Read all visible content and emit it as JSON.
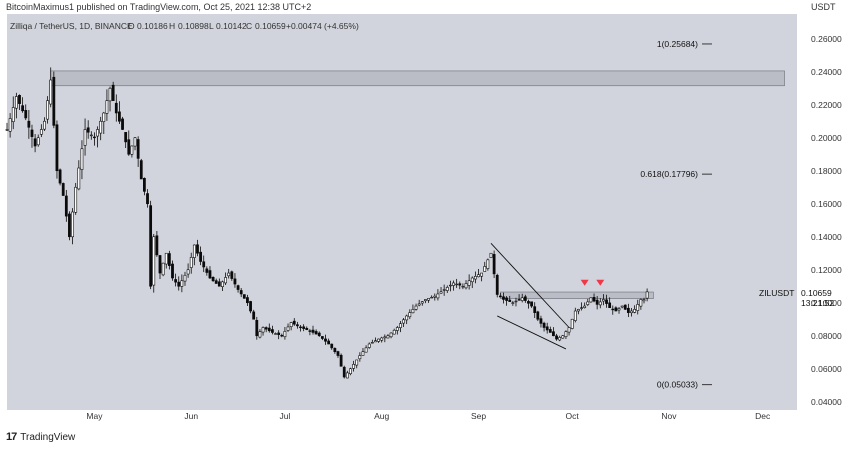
{
  "header": {
    "publisher": "BitcoinMaximus1 published on TradingView.com, Oct 25, 2021 12:38 UTC+2",
    "currency": "USDT"
  },
  "chart_data": {
    "type": "candlestick",
    "symbol_line": "Zilliqa / TetherUS, 1D, BINANCE",
    "ohlc": {
      "o_label": "O",
      "o": "0.10186",
      "h_label": "H",
      "h": "0.10898",
      "l_label": "L",
      "l": "0.10142",
      "c_label": "C",
      "c": "0.10659",
      "change": "+0.00474 (+4.65%)"
    },
    "ylim": [
      0.035,
      0.275
    ],
    "y_ticks": [
      0.26,
      0.24,
      0.22,
      0.2,
      0.18,
      0.16,
      0.14,
      0.12,
      0.1,
      0.08,
      0.06,
      0.04
    ],
    "y_tick_labels": [
      "0.26000",
      "0.24000",
      "0.22000",
      "0.20000",
      "0.18000",
      "0.16000",
      "0.14000",
      "0.12000",
      "0.10000",
      "0.08000",
      "0.06000",
      "0.04000"
    ],
    "x_range": [
      "2021-04-03",
      "2021-12-12"
    ],
    "x_ticks": [
      {
        "date": "2021-05-01",
        "label": "May"
      },
      {
        "date": "2021-06-01",
        "label": "Jun"
      },
      {
        "date": "2021-07-01",
        "label": "Jul"
      },
      {
        "date": "2021-08-01",
        "label": "Aug"
      },
      {
        "date": "2021-09-01",
        "label": "Sep"
      },
      {
        "date": "2021-10-01",
        "label": "Oct"
      },
      {
        "date": "2021-11-01",
        "label": "Nov"
      },
      {
        "date": "2021-12-01",
        "label": "Dec"
      }
    ],
    "close_points": [
      [
        "2021-04-03",
        0.205
      ],
      [
        "2021-04-06",
        0.225
      ],
      [
        "2021-04-09",
        0.212
      ],
      [
        "2021-04-12",
        0.195
      ],
      [
        "2021-04-15",
        0.21
      ],
      [
        "2021-04-17",
        0.235
      ],
      [
        "2021-04-19",
        0.18
      ],
      [
        "2021-04-21",
        0.165
      ],
      [
        "2021-04-23",
        0.14
      ],
      [
        "2021-04-25",
        0.17
      ],
      [
        "2021-04-28",
        0.205
      ],
      [
        "2021-05-01",
        0.2
      ],
      [
        "2021-05-04",
        0.215
      ],
      [
        "2021-05-06",
        0.23
      ],
      [
        "2021-05-08",
        0.215
      ],
      [
        "2021-05-10",
        0.205
      ],
      [
        "2021-05-12",
        0.19
      ],
      [
        "2021-05-14",
        0.2
      ],
      [
        "2021-05-16",
        0.175
      ],
      [
        "2021-05-18",
        0.16
      ],
      [
        "2021-05-19",
        0.11
      ],
      [
        "2021-05-20",
        0.14
      ],
      [
        "2021-05-22",
        0.118
      ],
      [
        "2021-05-24",
        0.13
      ],
      [
        "2021-05-26",
        0.115
      ],
      [
        "2021-05-28",
        0.11
      ],
      [
        "2021-05-31",
        0.12
      ],
      [
        "2021-06-02",
        0.135
      ],
      [
        "2021-06-04",
        0.125
      ],
      [
        "2021-06-07",
        0.115
      ],
      [
        "2021-06-10",
        0.11
      ],
      [
        "2021-06-13",
        0.118
      ],
      [
        "2021-06-16",
        0.108
      ],
      [
        "2021-06-19",
        0.1
      ],
      [
        "2021-06-21",
        0.09
      ],
      [
        "2021-06-22",
        0.08
      ],
      [
        "2021-06-24",
        0.085
      ],
      [
        "2021-06-27",
        0.082
      ],
      [
        "2021-06-30",
        0.08
      ],
      [
        "2021-07-03",
        0.088
      ],
      [
        "2021-07-06",
        0.085
      ],
      [
        "2021-07-09",
        0.083
      ],
      [
        "2021-07-12",
        0.08
      ],
      [
        "2021-07-15",
        0.075
      ],
      [
        "2021-07-18",
        0.068
      ],
      [
        "2021-07-20",
        0.055
      ],
      [
        "2021-07-22",
        0.06
      ],
      [
        "2021-07-25",
        0.068
      ],
      [
        "2021-07-28",
        0.075
      ],
      [
        "2021-07-31",
        0.078
      ],
      [
        "2021-08-03",
        0.08
      ],
      [
        "2021-08-06",
        0.085
      ],
      [
        "2021-08-09",
        0.092
      ],
      [
        "2021-08-12",
        0.098
      ],
      [
        "2021-08-15",
        0.102
      ],
      [
        "2021-08-18",
        0.104
      ],
      [
        "2021-08-21",
        0.108
      ],
      [
        "2021-08-24",
        0.112
      ],
      [
        "2021-08-27",
        0.11
      ],
      [
        "2021-08-30",
        0.115
      ],
      [
        "2021-09-02",
        0.118
      ],
      [
        "2021-09-05",
        0.13
      ],
      [
        "2021-09-07",
        0.105
      ],
      [
        "2021-09-09",
        0.102
      ],
      [
        "2021-09-12",
        0.1
      ],
      [
        "2021-09-15",
        0.103
      ],
      [
        "2021-09-18",
        0.098
      ],
      [
        "2021-09-20",
        0.09
      ],
      [
        "2021-09-22",
        0.085
      ],
      [
        "2021-09-24",
        0.082
      ],
      [
        "2021-09-26",
        0.078
      ],
      [
        "2021-09-28",
        0.08
      ],
      [
        "2021-09-30",
        0.085
      ],
      [
        "2021-10-02",
        0.095
      ],
      [
        "2021-10-05",
        0.098
      ],
      [
        "2021-10-07",
        0.103
      ],
      [
        "2021-10-09",
        0.099
      ],
      [
        "2021-10-11",
        0.102
      ],
      [
        "2021-10-13",
        0.097
      ],
      [
        "2021-10-15",
        0.095
      ],
      [
        "2021-10-17",
        0.098
      ],
      [
        "2021-10-19",
        0.094
      ],
      [
        "2021-10-21",
        0.096
      ],
      [
        "2021-10-23",
        0.102
      ],
      [
        "2021-10-24",
        0.1019
      ],
      [
        "2021-10-25",
        0.10659
      ]
    ],
    "annotations": {
      "resistance_zone": {
        "x_start": "2021-04-17",
        "x_end": "2021-12-08",
        "y_low": 0.2315,
        "y_high": 0.2405
      },
      "support_zone": {
        "x_start": "2021-09-08",
        "x_end": "2021-10-27",
        "y_low": 0.1025,
        "y_high": 0.1065
      },
      "wedge_upper": [
        [
          "2021-09-05",
          0.136
        ],
        [
          "2021-09-30",
          0.085
        ]
      ],
      "wedge_lower": [
        [
          "2021-09-07",
          0.092
        ],
        [
          "2021-09-29",
          0.072
        ]
      ],
      "markers": [
        {
          "date": "2021-10-05",
          "price": 0.1115
        },
        {
          "date": "2021-10-10",
          "price": 0.1115
        }
      ],
      "fib_levels": [
        {
          "label": "1(0.25684)",
          "value": 0.25684
        },
        {
          "label": "0.618(0.17796)",
          "value": 0.17796
        },
        {
          "label": "0(0.05033)",
          "value": 0.05033
        }
      ]
    },
    "last_price": {
      "symbol": "ZILUSDT",
      "price": "0.10659",
      "countdown": "13:21:52"
    }
  },
  "colors": {
    "background": "#d1d4dc",
    "candle": "#0a0a0a",
    "zone": "#b2b5be",
    "marker": "#f23645"
  },
  "footer": {
    "logo": "17",
    "brand": "TradingView"
  }
}
